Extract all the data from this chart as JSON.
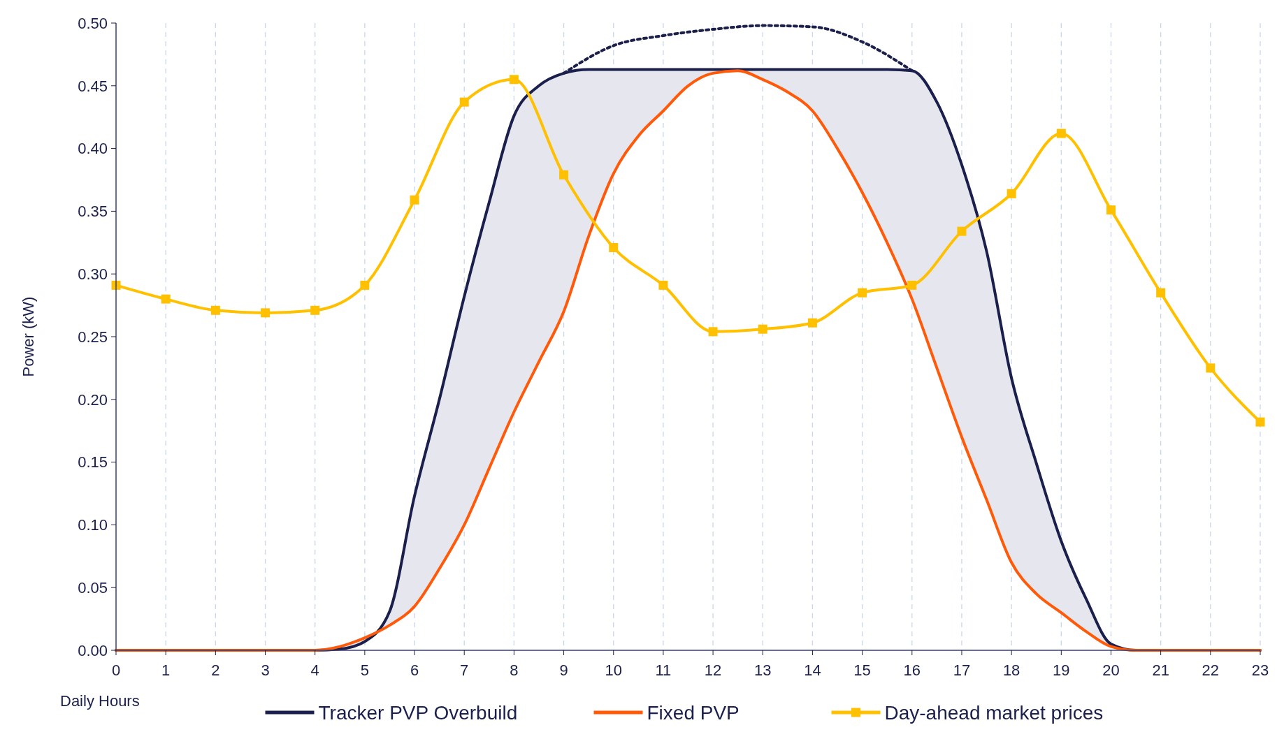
{
  "chart_data": {
    "type": "line",
    "xlabel": "Daily Hours",
    "ylabel": "Power (kW)",
    "xlim": [
      0,
      23
    ],
    "xticks": [
      0,
      1,
      2,
      3,
      4,
      5,
      6,
      7,
      8,
      9,
      10,
      11,
      12,
      13,
      14,
      15,
      16,
      17,
      18,
      19,
      20,
      21,
      22,
      23
    ],
    "ylim": [
      0,
      0.5
    ],
    "yticks": [
      {
        "value": 0,
        "label": "0.00"
      },
      {
        "value": 0.05,
        "label": "0.05"
      },
      {
        "value": 0.1,
        "label": "0.10"
      },
      {
        "value": 0.15,
        "label": "0.15"
      },
      {
        "value": 0.2,
        "label": "0.20"
      },
      {
        "value": 0.25,
        "label": "0.25"
      },
      {
        "value": 0.3,
        "label": "0.30"
      },
      {
        "value": 0.35,
        "label": "0.35"
      },
      {
        "value": 0.4,
        "label": "0.40"
      },
      {
        "value": 0.45,
        "label": "0.45"
      },
      {
        "value": 0.5,
        "label": "0.50"
      }
    ],
    "grid": "x",
    "legend": "bottom",
    "series": [
      {
        "name": "Tracker PVP Overbuild",
        "color": "#1b1f4b",
        "marker": "none",
        "line_style": "solid",
        "x": [
          0,
          0.5,
          1,
          1.5,
          2,
          2.5,
          3,
          3.5,
          4,
          4.5,
          5,
          5.5,
          6,
          6.5,
          7,
          7.5,
          8,
          8.5,
          9,
          9.5,
          10,
          10.5,
          11,
          11.5,
          12,
          12.5,
          13,
          13.5,
          14,
          14.5,
          15,
          15.5,
          16,
          16.5,
          17,
          17.5,
          18,
          18.5,
          19,
          19.5,
          20,
          20.5,
          21,
          21.5,
          22,
          22.5,
          23
        ],
        "values": [
          0,
          0,
          0,
          0,
          0,
          0,
          0,
          0,
          0,
          0.001,
          0.007,
          0.031,
          0.123,
          0.2,
          0.282,
          0.357,
          0.426,
          0.45,
          0.46,
          0.463,
          0.463,
          0.463,
          0.463,
          0.463,
          0.463,
          0.463,
          0.463,
          0.463,
          0.463,
          0.463,
          0.463,
          0.463,
          0.462,
          0.437,
          0.387,
          0.318,
          0.217,
          0.149,
          0.087,
          0.041,
          0.005,
          0,
          0,
          0,
          0,
          0,
          0
        ],
        "lower": [
          0,
          0,
          0,
          0,
          0,
          0,
          0,
          0,
          0,
          0.003,
          0.01,
          0.02,
          0.035,
          0.065,
          0.1,
          0.145,
          0.19,
          0.23,
          0.27,
          0.33,
          0.38,
          0.41,
          0.43,
          0.45,
          0.46,
          0.462,
          0.455,
          0.445,
          0.43,
          0.4,
          0.365,
          0.325,
          0.28,
          0.225,
          0.17,
          0.12,
          0.07,
          0.045,
          0.03,
          0.015,
          0.003,
          0,
          0,
          0,
          0,
          0,
          0
        ],
        "upper": [
          0,
          0,
          0,
          0,
          0,
          0,
          0,
          0,
          0,
          0.001,
          0.007,
          0.031,
          0.123,
          0.2,
          0.282,
          0.357,
          0.426,
          0.45,
          0.46,
          0.463,
          0.463,
          0.463,
          0.463,
          0.463,
          0.463,
          0.463,
          0.463,
          0.463,
          0.463,
          0.463,
          0.463,
          0.463,
          0.462,
          0.437,
          0.387,
          0.318,
          0.217,
          0.149,
          0.087,
          0.041,
          0.005,
          0,
          0,
          0,
          0,
          0,
          0
        ]
      },
      {
        "color": "#1b1f4b",
        "marker": "none",
        "line_style": "dotted",
        "x": [
          9,
          10,
          11,
          12,
          13,
          14,
          15,
          16
        ],
        "values": [
          0.46,
          0.482,
          0.49,
          0.495,
          0.498,
          0.497,
          0.485,
          0.462
        ]
      },
      {
        "name": "Fixed PVP",
        "color": "#ff5a0a",
        "marker": "none",
        "line_style": "solid",
        "x": [
          0,
          0.5,
          1,
          1.5,
          2,
          2.5,
          3,
          3.5,
          4,
          4.5,
          5,
          5.5,
          6,
          6.5,
          7,
          7.5,
          8,
          8.5,
          9,
          9.5,
          10,
          10.5,
          11,
          11.5,
          12,
          12.5,
          13,
          13.5,
          14,
          14.5,
          15,
          15.5,
          16,
          16.5,
          17,
          17.5,
          18,
          18.5,
          19,
          19.5,
          20,
          20.5,
          21,
          21.5,
          22,
          22.5,
          23
        ],
        "values": [
          0,
          0,
          0,
          0,
          0,
          0,
          0,
          0,
          0,
          0.003,
          0.01,
          0.02,
          0.035,
          0.065,
          0.1,
          0.145,
          0.19,
          0.23,
          0.27,
          0.33,
          0.38,
          0.41,
          0.43,
          0.45,
          0.46,
          0.462,
          0.455,
          0.445,
          0.43,
          0.4,
          0.365,
          0.325,
          0.28,
          0.225,
          0.17,
          0.12,
          0.07,
          0.045,
          0.03,
          0.015,
          0.003,
          0,
          0,
          0,
          0,
          0,
          0
        ]
      },
      {
        "name": "Day-ahead market prices",
        "color": "#ffc000",
        "marker": "square",
        "line_style": "solid",
        "x": [
          0,
          1,
          2,
          3,
          4,
          5,
          6,
          7,
          8,
          9,
          10,
          11,
          12,
          13,
          14,
          15,
          16,
          17,
          18,
          19,
          20,
          21,
          22,
          23
        ],
        "values": [
          0.291,
          0.28,
          0.271,
          0.269,
          0.271,
          0.291,
          0.359,
          0.437,
          0.455,
          0.379,
          0.321,
          0.291,
          0.254,
          0.256,
          0.261,
          0.285,
          0.291,
          0.334,
          0.364,
          0.412,
          0.351,
          0.285,
          0.225,
          0.182
        ]
      }
    ]
  }
}
